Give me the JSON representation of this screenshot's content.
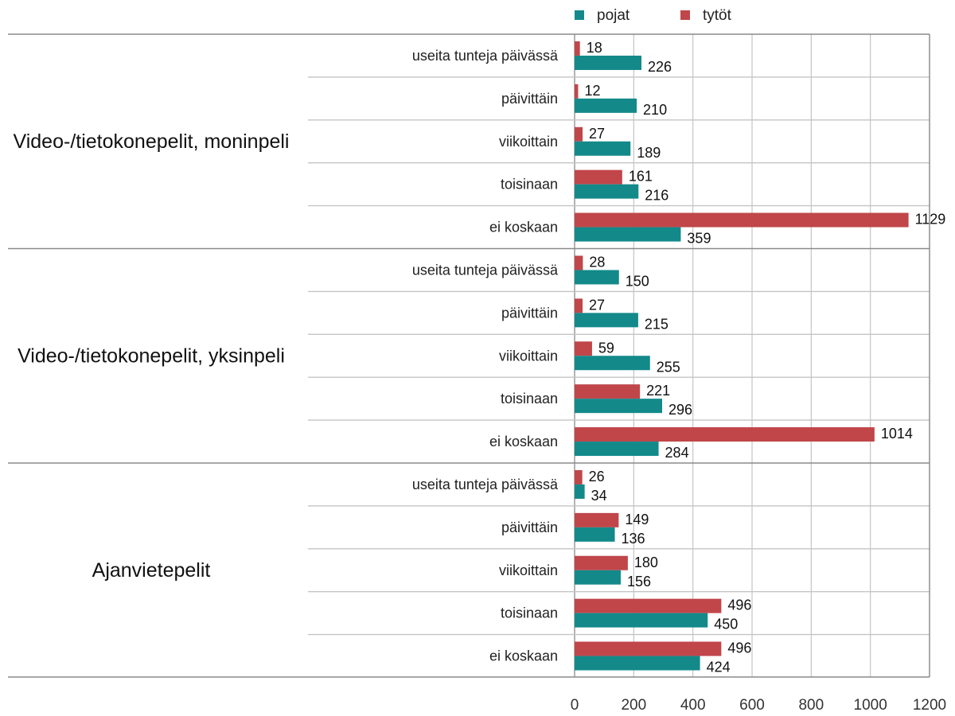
{
  "chart_data": {
    "type": "bar",
    "orientation": "horizontal",
    "legend": {
      "placement": "top",
      "items": [
        "pojat",
        "tytöt"
      ]
    },
    "xlim": [
      0,
      1200
    ],
    "x_ticks": [
      0,
      200,
      400,
      600,
      800,
      1000,
      1200
    ],
    "grid": true,
    "colors": {
      "pojat": "#13898a",
      "tytöt": "#c0464a"
    },
    "groups": [
      {
        "name": "Video-/tietokonepelit, moninpeli",
        "categories": [
          "useita tunteja päivässä",
          "päivittäin",
          "viikoittain",
          "toisinaan",
          "ei koskaan"
        ],
        "series": [
          {
            "name": "tytöt",
            "values": [
              18,
              12,
              27,
              161,
              1129
            ]
          },
          {
            "name": "pojat",
            "values": [
              226,
              210,
              189,
              216,
              359
            ]
          }
        ]
      },
      {
        "name": "Video-/tietokonepelit, yksinpeli",
        "categories": [
          "useita tunteja päivässä",
          "päivittäin",
          "viikoittain",
          "toisinaan",
          "ei koskaan"
        ],
        "series": [
          {
            "name": "tytöt",
            "values": [
              28,
              27,
              59,
              221,
              1014
            ]
          },
          {
            "name": "pojat",
            "values": [
              150,
              215,
              255,
              296,
              284
            ]
          }
        ]
      },
      {
        "name": "Ajanvietepelit",
        "categories": [
          "useita tunteja päivässä",
          "päivittäin",
          "viikoittain",
          "toisinaan",
          "ei koskaan"
        ],
        "series": [
          {
            "name": "tytöt",
            "values": [
              26,
              149,
              180,
              496,
              496
            ]
          },
          {
            "name": "pojat",
            "values": [
              34,
              136,
              156,
              450,
              424
            ]
          }
        ]
      }
    ]
  }
}
